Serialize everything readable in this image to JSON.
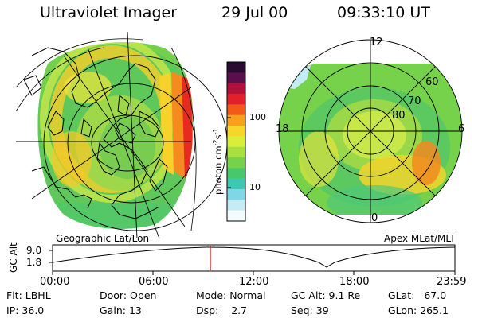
{
  "header": {
    "instrument": "Ultraviolet Imager",
    "date": "29 Jul 00",
    "time": "09:33:10 UT"
  },
  "left_panel": {
    "label": "Geographic Lat/Lon"
  },
  "right_panel": {
    "label": "Apex MLat/MLT",
    "mlt_labels": {
      "top": "12",
      "left": "18",
      "right": "6",
      "bottom": "0"
    },
    "lat_labels": [
      "60",
      "70",
      "80"
    ]
  },
  "colorbar": {
    "unit_label": "photon cm",
    "unit_sup1": "-2",
    "unit_mid": "s",
    "unit_sup2": "-1",
    "ticks": [
      "100",
      "10"
    ],
    "colors": [
      "#2a0a30",
      "#5a0f4a",
      "#b0103a",
      "#e0202a",
      "#f25a1a",
      "#f8a01e",
      "#f7d52a",
      "#d8ef3a",
      "#a8e040",
      "#76d24a",
      "#48c86a",
      "#3ec8b4",
      "#7fd6e6",
      "#c4ecf4",
      "#f2fbff"
    ]
  },
  "timeline": {
    "ylabel": "GC Alt",
    "yticks": [
      "9.0",
      "1.8"
    ],
    "xticks": [
      "00:00",
      "06:00",
      "12:00",
      "18:00",
      "23:59"
    ],
    "current_time_marker": "09:33"
  },
  "info": {
    "filter_label": "Flt:",
    "filter_value": "LBHL",
    "ip_label": "IP:",
    "ip_value": "36.0",
    "door_label": "Door:",
    "door_value": "Open",
    "gain_label": "Gain:",
    "gain_value": "13",
    "mode_label": "Mode:",
    "mode_value": "Normal",
    "dsp_label": "Dsp:",
    "dsp_value": "2.7",
    "gcalt_label": "GC Alt:",
    "gcalt_value": "9.1 Re",
    "seq_label": "Seq:",
    "seq_value": "39",
    "glat_label": "GLat:",
    "glat_value": "67.0",
    "glon_label": "GLon:",
    "glon_value": "265.1"
  }
}
